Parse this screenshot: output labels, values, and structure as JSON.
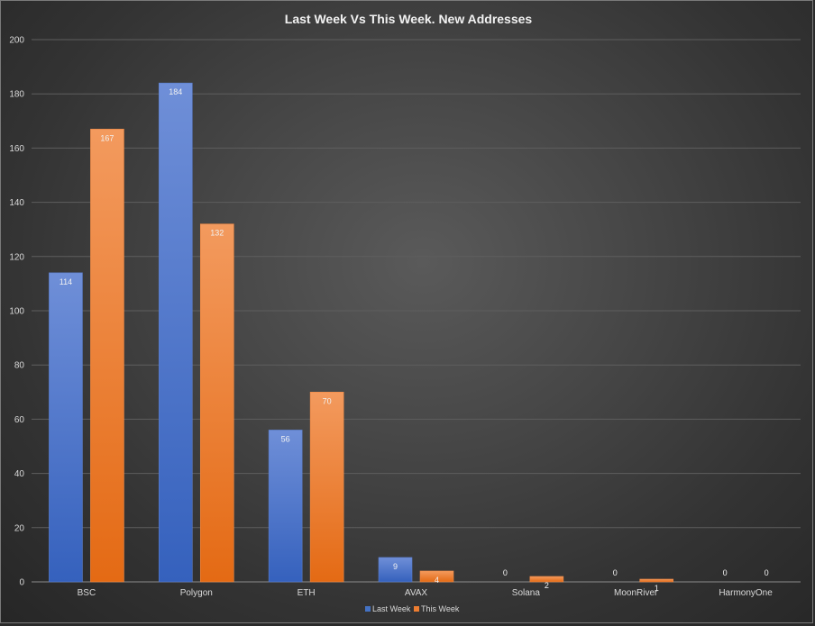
{
  "chart_data": {
    "type": "bar",
    "title": "Last Week Vs This Week. New Addresses",
    "categories": [
      "BSC",
      "Polygon",
      "ETH",
      "AVAX",
      "Solana",
      "MoonRiver",
      "HarmonyOne"
    ],
    "series": [
      {
        "name": "Last Week",
        "values": [
          114,
          184,
          56,
          9,
          0,
          0,
          0
        ],
        "color": "#4472c4"
      },
      {
        "name": "This Week",
        "values": [
          167,
          132,
          70,
          4,
          2,
          1,
          0
        ],
        "color": "#ed7d31"
      }
    ],
    "ylim": [
      0,
      200
    ],
    "yticks": [
      0,
      20,
      40,
      60,
      80,
      100,
      120,
      140,
      160,
      180,
      200
    ],
    "grid": true,
    "legend_position": "bottom"
  }
}
